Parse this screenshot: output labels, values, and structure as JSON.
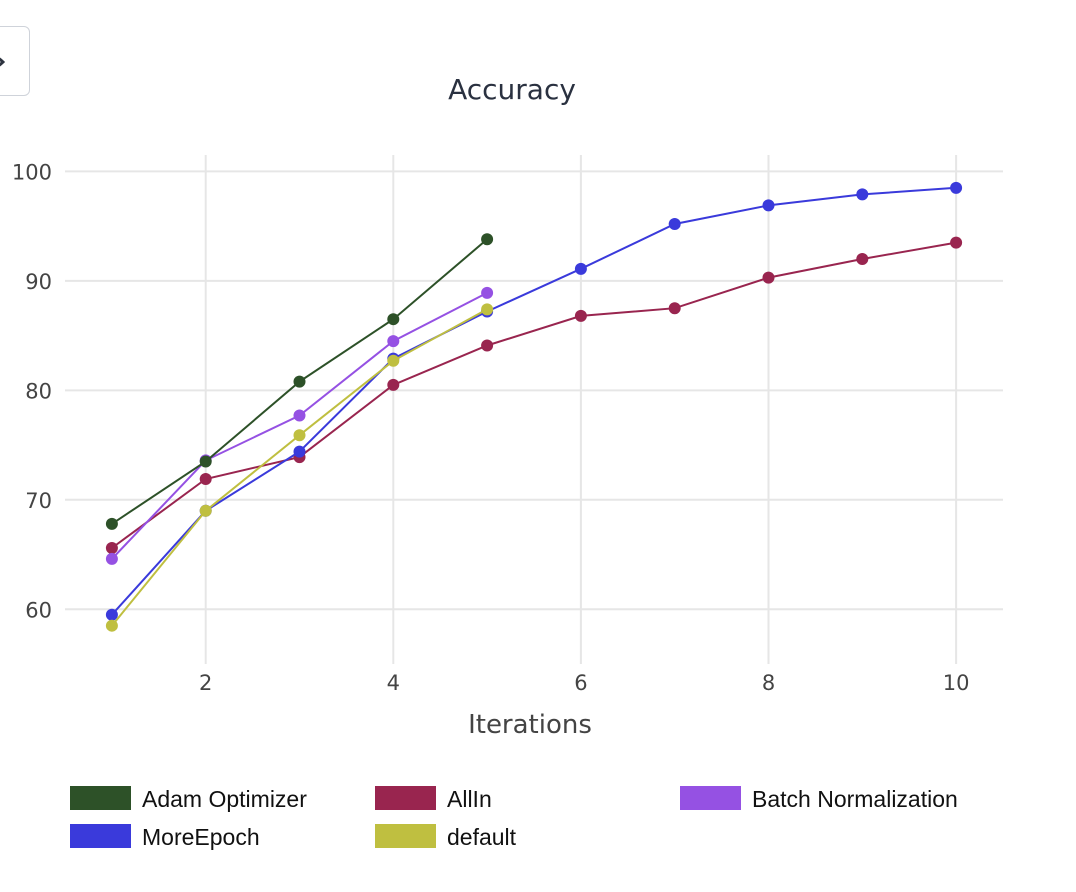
{
  "toolbar": {
    "view_icon": "eye-icon"
  },
  "chart_data": {
    "type": "line",
    "title": "Accuracy",
    "xlabel": "Iterations",
    "ylabel": "",
    "xlim": [
      0.5,
      10.5
    ],
    "ylim": [
      55,
      101.5
    ],
    "x_ticks": [
      2,
      4,
      6,
      8,
      10
    ],
    "y_ticks": [
      60,
      70,
      80,
      90,
      100
    ],
    "grid": true,
    "legend_position": "bottom",
    "series": [
      {
        "name": "Adam Optimizer",
        "color": "#2d5128",
        "x": [
          1,
          2,
          3,
          4,
          5
        ],
        "values": [
          67.8,
          73.5,
          80.8,
          86.5,
          93.8
        ]
      },
      {
        "name": "AllIn",
        "color": "#99254f",
        "x": [
          1,
          2,
          3,
          4,
          5,
          6,
          7,
          8,
          9,
          10
        ],
        "values": [
          65.6,
          71.9,
          73.9,
          80.5,
          84.1,
          86.8,
          87.5,
          90.3,
          92.0,
          93.5
        ]
      },
      {
        "name": "Batch Normalization",
        "color": "#9551e3",
        "x": [
          1,
          2,
          3,
          4,
          5
        ],
        "values": [
          64.6,
          73.6,
          77.7,
          84.5,
          88.9
        ]
      },
      {
        "name": "MoreEpoch",
        "color": "#3a3adb",
        "x": [
          1,
          2,
          3,
          4,
          5,
          6,
          7,
          8,
          9,
          10
        ],
        "values": [
          59.5,
          69.0,
          74.4,
          82.9,
          87.2,
          91.1,
          95.2,
          96.9,
          97.9,
          98.5
        ]
      },
      {
        "name": "default",
        "color": "#bfbf40",
        "x": [
          1,
          2,
          3,
          4,
          5
        ],
        "values": [
          58.5,
          69.0,
          75.9,
          82.7,
          87.4
        ]
      }
    ]
  }
}
